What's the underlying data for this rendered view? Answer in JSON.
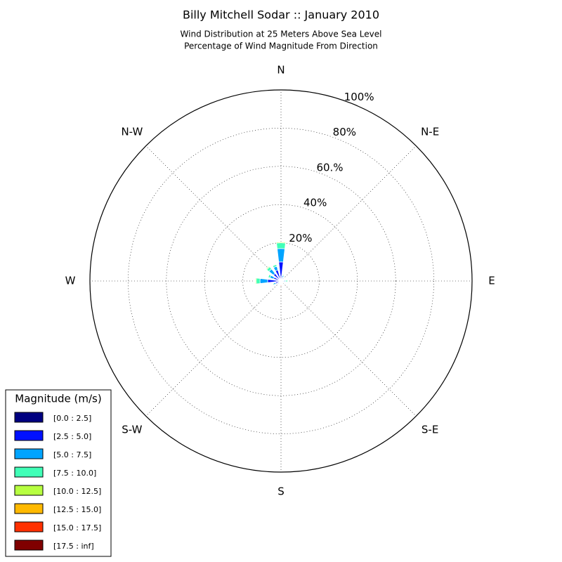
{
  "chart_data": {
    "type": "windrose",
    "title": "Billy Mitchell Sodar :: January 2010",
    "subtitle": [
      "Wind Distribution at 25 Meters Above Sea Level",
      "Percentage of Wind Magnitude From Direction"
    ],
    "categories": [
      "N",
      null,
      "N-E",
      null,
      "E",
      null,
      "S-E",
      null,
      "S",
      null,
      "S-W",
      null,
      "W",
      null,
      "N-W",
      null
    ],
    "ylim": [
      0,
      100
    ],
    "yticks": [
      {
        "value": 20,
        "label": "20%"
      },
      {
        "value": 40,
        "label": "40%"
      },
      {
        "value": 60,
        "label": "60.%"
      },
      {
        "value": 80,
        "label": "80%"
      },
      {
        "value": 100,
        "label": "100%"
      }
    ],
    "grid": true,
    "legend_title": "Magnitude (m/s)",
    "legend_position": "lower left",
    "series": [
      {
        "name": "[0.0 : 2.5]",
        "color": "#000080",
        "values": [
          1,
          0.5,
          0.5,
          0.5,
          0.5,
          0.5,
          0.5,
          0.5,
          0.5,
          0.5,
          0.5,
          1,
          1,
          1,
          1,
          1
        ]
      },
      {
        "name": "[2.5 : 5.0]",
        "color": "#0010ff",
        "values": [
          9,
          1.5,
          1,
          0.5,
          1,
          0.5,
          0.5,
          0.5,
          0.5,
          0.5,
          1,
          2,
          6,
          3,
          4,
          5
        ]
      },
      {
        "name": "[5.0 : 7.5]",
        "color": "#00a4ff",
        "values": [
          7,
          1,
          0.5,
          0.5,
          1,
          0.5,
          0.3,
          0.3,
          0.5,
          0.3,
          0.5,
          1,
          4,
          2,
          3,
          2
        ]
      },
      {
        "name": "[7.5 : 10.0]",
        "color": "#40ffb7",
        "values": [
          3,
          0.5,
          0.3,
          0.3,
          1,
          0.3,
          0.2,
          0.2,
          0.3,
          0.2,
          0.3,
          0.5,
          2,
          1,
          1.5,
          1
        ]
      },
      {
        "name": "[10.0 : 12.5]",
        "color": "#b7ff40",
        "values": [
          0.5,
          0.2,
          0.1,
          0.1,
          0.3,
          0.1,
          0,
          0,
          0.2,
          0.1,
          0.1,
          0.2,
          0.5,
          0.3,
          0.5,
          0.3
        ]
      },
      {
        "name": "[12.5 : 15.0]",
        "color": "#ffb900",
        "values": [
          0,
          0,
          0,
          0,
          0,
          0,
          0,
          0,
          0.3,
          0,
          0,
          0,
          0,
          0,
          0,
          0
        ]
      },
      {
        "name": "[15.0 : 17.5]",
        "color": "#ff3000",
        "values": [
          0,
          0,
          0,
          0,
          0,
          0,
          0,
          0,
          0.5,
          0,
          0,
          0,
          0,
          0,
          0,
          0
        ]
      },
      {
        "name": "[17.5 : inf]",
        "color": "#800000",
        "values": [
          0,
          0,
          0,
          0,
          0,
          0,
          0,
          0,
          0,
          0,
          0,
          0,
          0,
          0,
          0,
          0
        ]
      }
    ]
  }
}
